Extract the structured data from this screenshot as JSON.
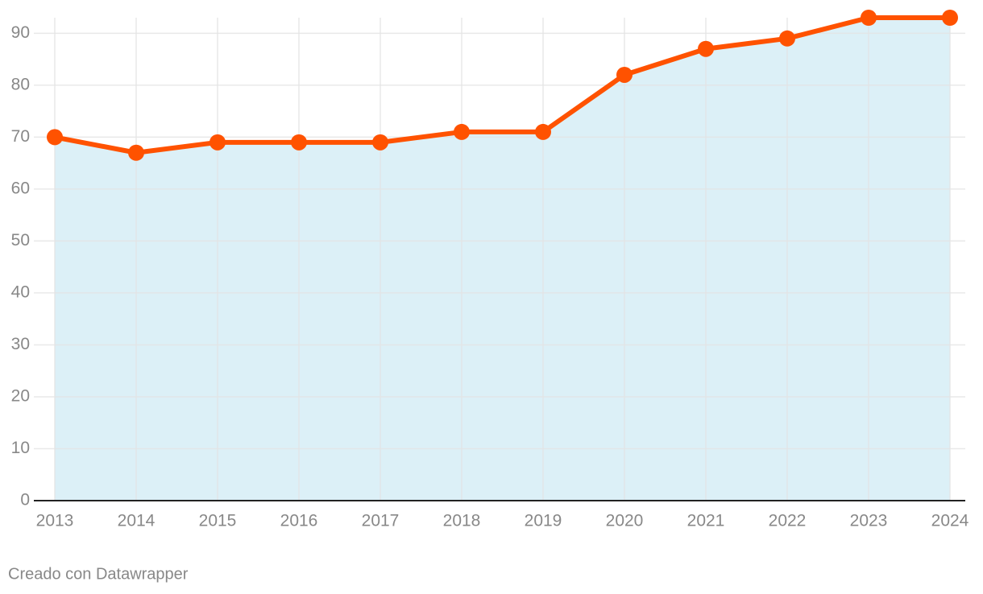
{
  "chart_data": {
    "type": "area-line",
    "x": [
      2013,
      2014,
      2015,
      2016,
      2017,
      2018,
      2019,
      2020,
      2021,
      2022,
      2023,
      2024
    ],
    "values": [
      70,
      67,
      69,
      69,
      69,
      71,
      71,
      82,
      87,
      89,
      93,
      93
    ],
    "color": "#ff5200",
    "area_color": "#dcf0f7",
    "xlim": [
      2013,
      2024
    ],
    "xticks": [
      2013,
      2014,
      2015,
      2016,
      2017,
      2018,
      2019,
      2020,
      2021,
      2022,
      2023,
      2024
    ],
    "ylim": [
      0,
      93
    ],
    "yticks": [
      0,
      10,
      20,
      30,
      40,
      50,
      60,
      70,
      80,
      90
    ],
    "grid": true
  },
  "credit": "Creado con Datawrapper"
}
